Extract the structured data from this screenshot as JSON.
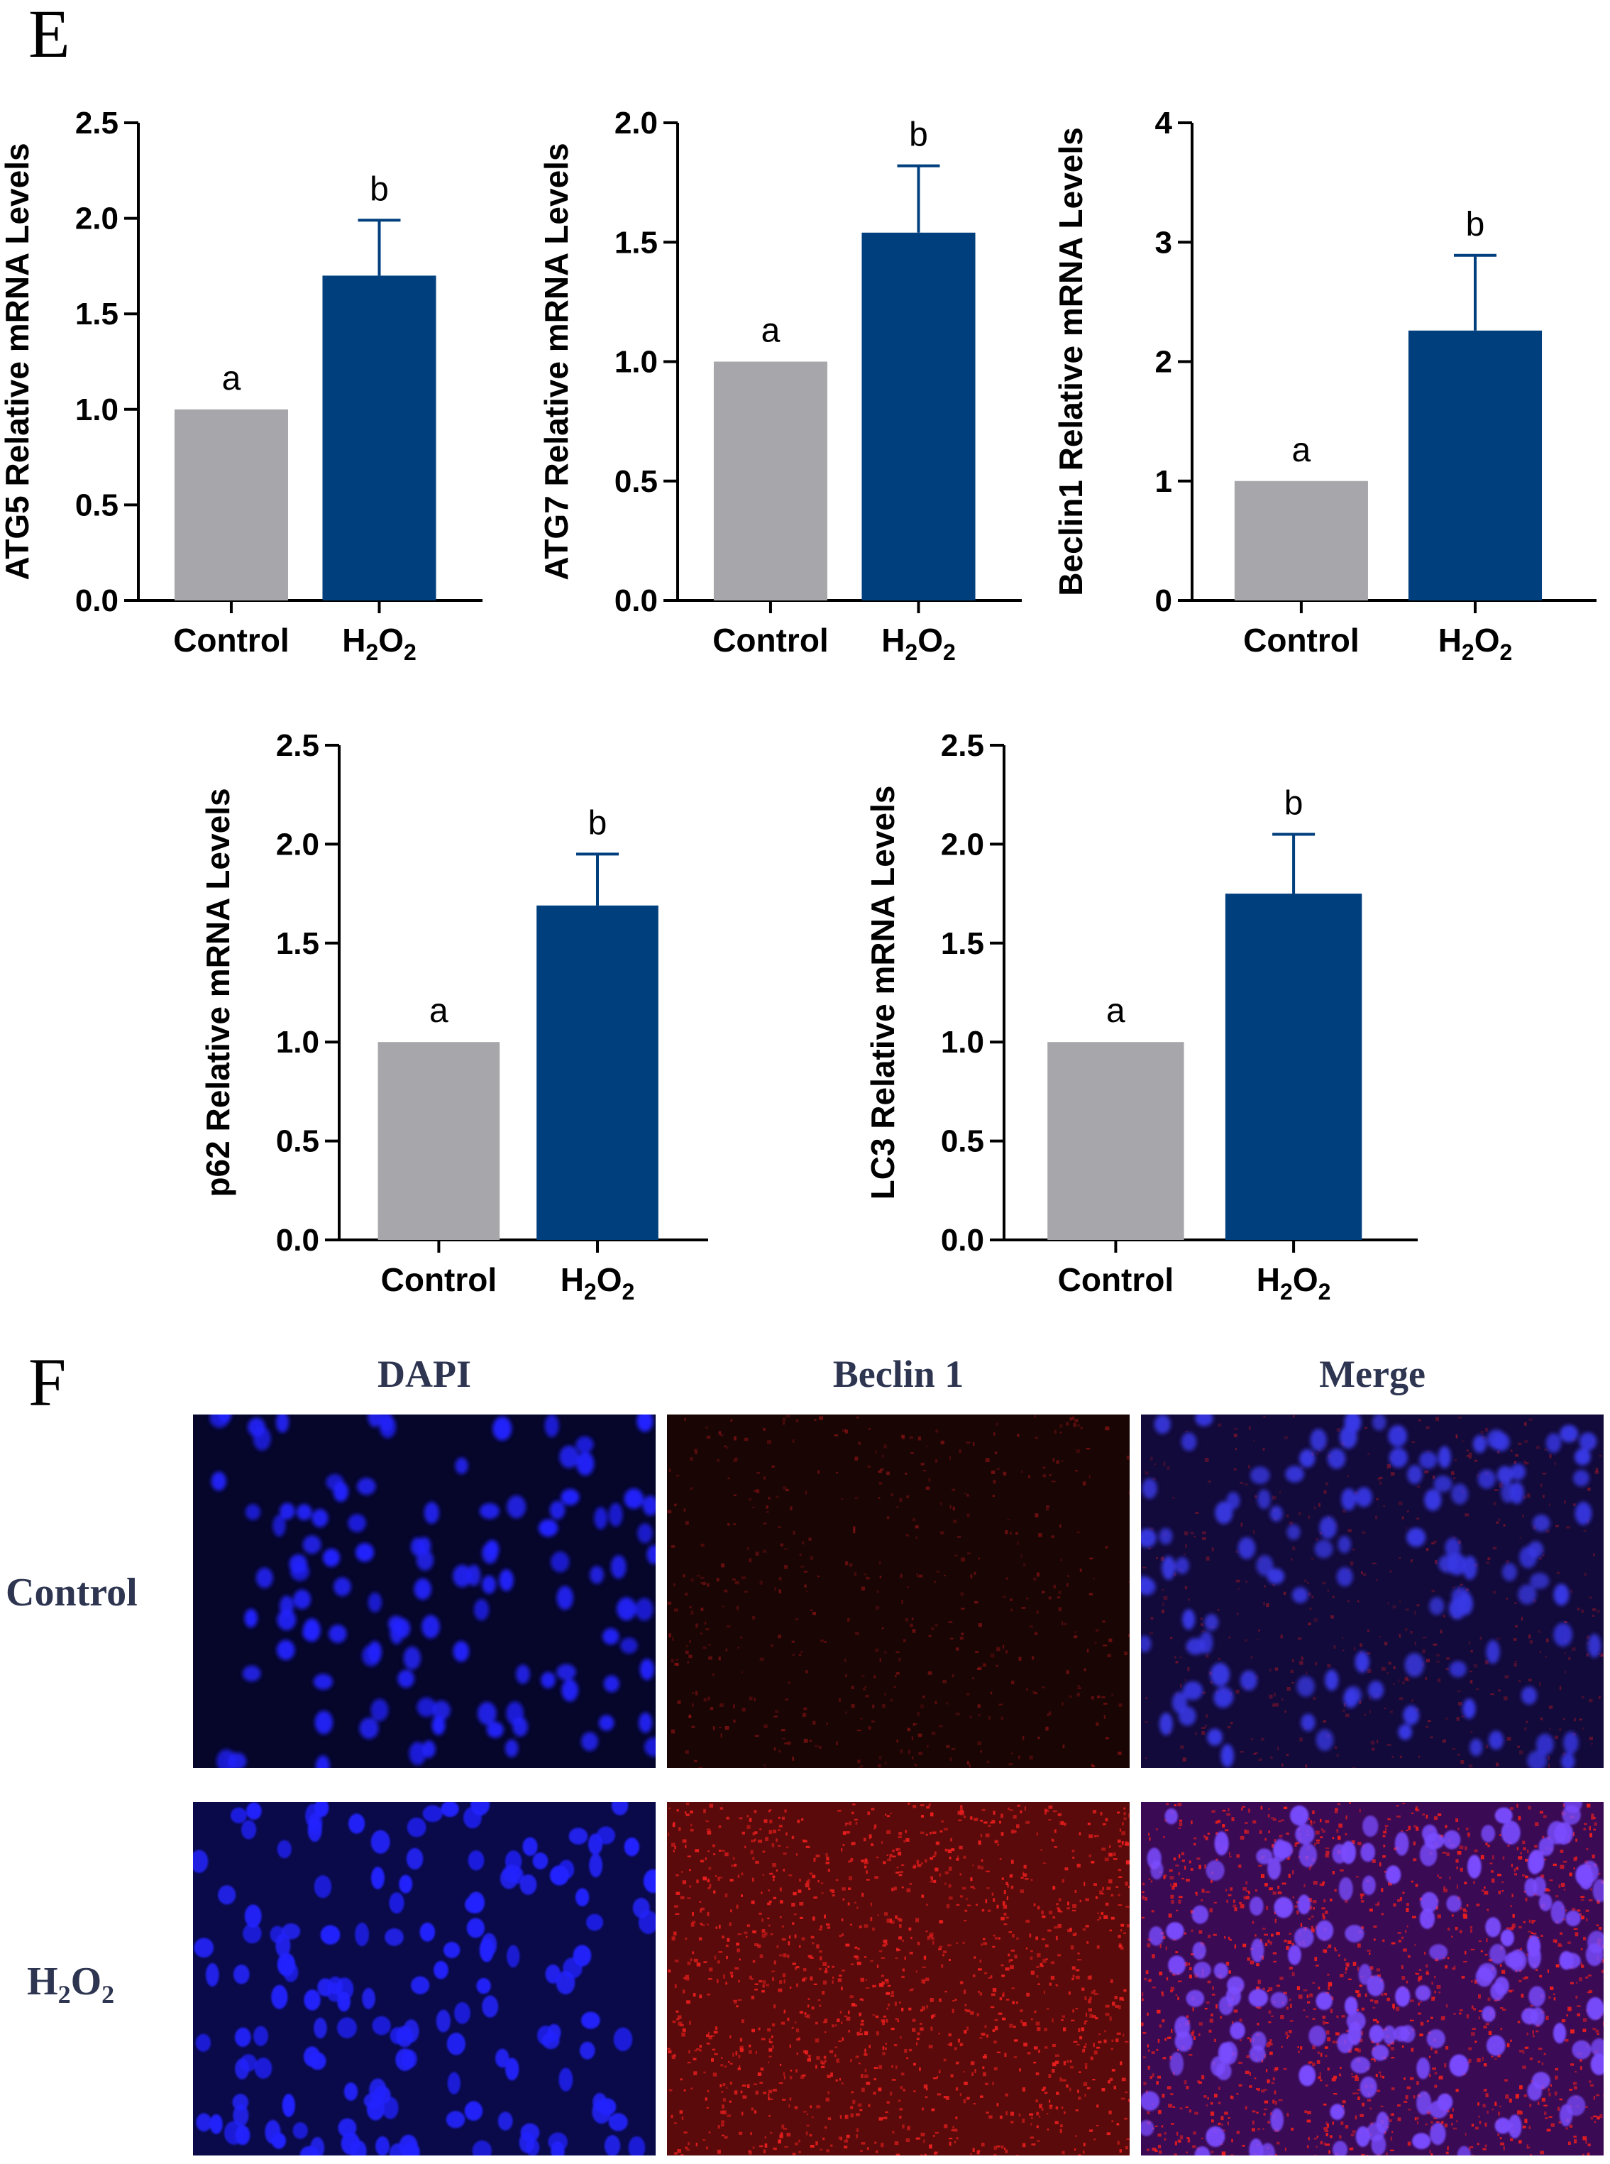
{
  "panels": {
    "E": "E",
    "F": "F"
  },
  "chart_data": [
    {
      "type": "bar",
      "ylabel": "ATG5 Relative mRNA Levels",
      "categories": [
        "Control",
        "H2O2"
      ],
      "values": [
        1.0,
        1.7
      ],
      "errors": [
        0,
        0.29
      ],
      "letters": [
        "a",
        "b"
      ],
      "ylim": [
        0,
        2.5
      ],
      "yticks": [
        0.0,
        0.5,
        1.0,
        1.5,
        2.0,
        2.5
      ],
      "tick_decimals": 1,
      "colors": [
        "#a7a6ab",
        "#003f7d"
      ]
    },
    {
      "type": "bar",
      "ylabel": "ATG7 Relative mRNA Levels",
      "categories": [
        "Control",
        "H2O2"
      ],
      "values": [
        1.0,
        1.54
      ],
      "errors": [
        0,
        0.28
      ],
      "letters": [
        "a",
        "b"
      ],
      "ylim": [
        0,
        2.0
      ],
      "yticks": [
        0.0,
        0.5,
        1.0,
        1.5,
        2.0
      ],
      "tick_decimals": 1,
      "colors": [
        "#a7a6ab",
        "#003f7d"
      ]
    },
    {
      "type": "bar",
      "ylabel": "Beclin1 Relative mRNA Levels",
      "categories": [
        "Control",
        "H2O2"
      ],
      "values": [
        1.0,
        2.26
      ],
      "errors": [
        0,
        0.63
      ],
      "letters": [
        "a",
        "b"
      ],
      "ylim": [
        0,
        4
      ],
      "yticks": [
        0,
        1,
        2,
        3,
        4
      ],
      "tick_decimals": 0,
      "colors": [
        "#a7a6ab",
        "#003f7d"
      ]
    },
    {
      "type": "bar",
      "ylabel": "p62 Relative mRNA Levels",
      "categories": [
        "Control",
        "H2O2"
      ],
      "values": [
        1.0,
        1.69
      ],
      "errors": [
        0,
        0.26
      ],
      "letters": [
        "a",
        "b"
      ],
      "ylim": [
        0,
        2.5
      ],
      "yticks": [
        0.0,
        0.5,
        1.0,
        1.5,
        2.0,
        2.5
      ],
      "tick_decimals": 1,
      "colors": [
        "#a7a6ab",
        "#003f7d"
      ]
    },
    {
      "type": "bar",
      "ylabel": "LC3 Relative mRNA Levels",
      "categories": [
        "Control",
        "H2O2"
      ],
      "values": [
        1.0,
        1.75
      ],
      "errors": [
        0,
        0.3
      ],
      "letters": [
        "a",
        "b"
      ],
      "ylim": [
        0,
        2.5
      ],
      "yticks": [
        0.0,
        0.5,
        1.0,
        1.5,
        2.0,
        2.5
      ],
      "tick_decimals": 1,
      "colors": [
        "#a7a6ab",
        "#003f7d"
      ]
    }
  ],
  "fluorescence": {
    "columns": [
      "DAPI",
      "Beclin 1",
      "Merge"
    ],
    "rows": [
      "Control",
      "H2O2"
    ]
  }
}
